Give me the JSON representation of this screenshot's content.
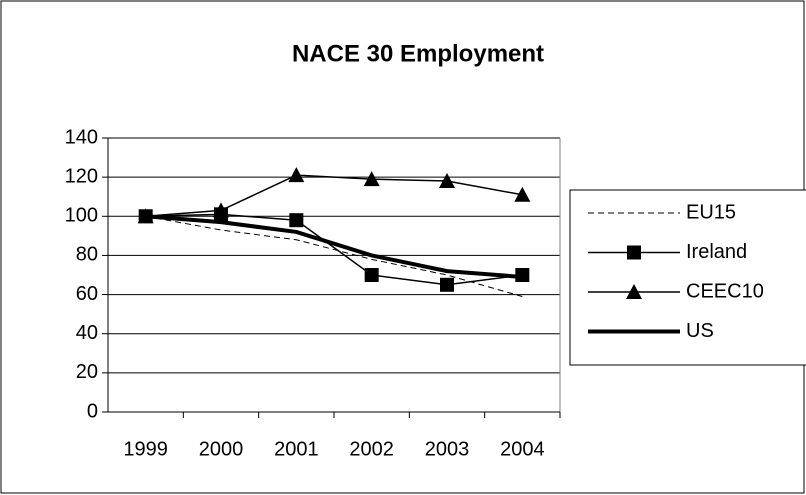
{
  "chart_data": {
    "type": "line",
    "title": "NACE 30 Employment",
    "categories": [
      "1999",
      "2000",
      "2001",
      "2002",
      "2003",
      "2004"
    ],
    "series": [
      {
        "name": "EU15",
        "color": "#000000",
        "dash": true,
        "width": 1,
        "marker": "none",
        "values": [
          100,
          93,
          88,
          78,
          70,
          59
        ]
      },
      {
        "name": "Ireland",
        "color": "#000000",
        "dash": false,
        "width": 1.5,
        "marker": "square",
        "values": [
          100,
          101,
          98,
          70,
          65,
          70
        ]
      },
      {
        "name": "CEEC10",
        "color": "#000000",
        "dash": false,
        "width": 1.5,
        "marker": "triangle",
        "values": [
          100,
          103,
          121,
          119,
          118,
          111
        ]
      },
      {
        "name": "US",
        "color": "#000000",
        "dash": false,
        "width": 4,
        "marker": "none",
        "values": [
          100,
          97,
          92,
          80,
          72,
          69
        ]
      }
    ],
    "ylim": [
      0,
      140
    ],
    "yticks": [
      0,
      20,
      40,
      60,
      80,
      100,
      120,
      140
    ],
    "grid": true,
    "legend": "right"
  }
}
